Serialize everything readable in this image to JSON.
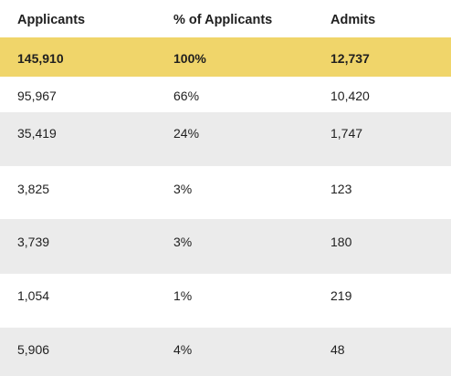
{
  "table": {
    "headers": [
      "Applicants",
      "% of Applicants",
      "Admits"
    ],
    "total": [
      "145,910",
      "100%",
      "12,737"
    ],
    "rows": [
      [
        "95,967",
        "66%",
        "10,420"
      ],
      [
        "35,419",
        "24%",
        "1,747"
      ],
      [
        "3,825",
        "3%",
        "123"
      ],
      [
        "3,739",
        "3%",
        "180"
      ],
      [
        "1,054",
        "1%",
        "219"
      ],
      [
        "5,906",
        "4%",
        "48"
      ]
    ]
  },
  "colors": {
    "highlight": "#f0d56a",
    "stripe": "#ebebeb",
    "text": "#1f1f1f"
  }
}
